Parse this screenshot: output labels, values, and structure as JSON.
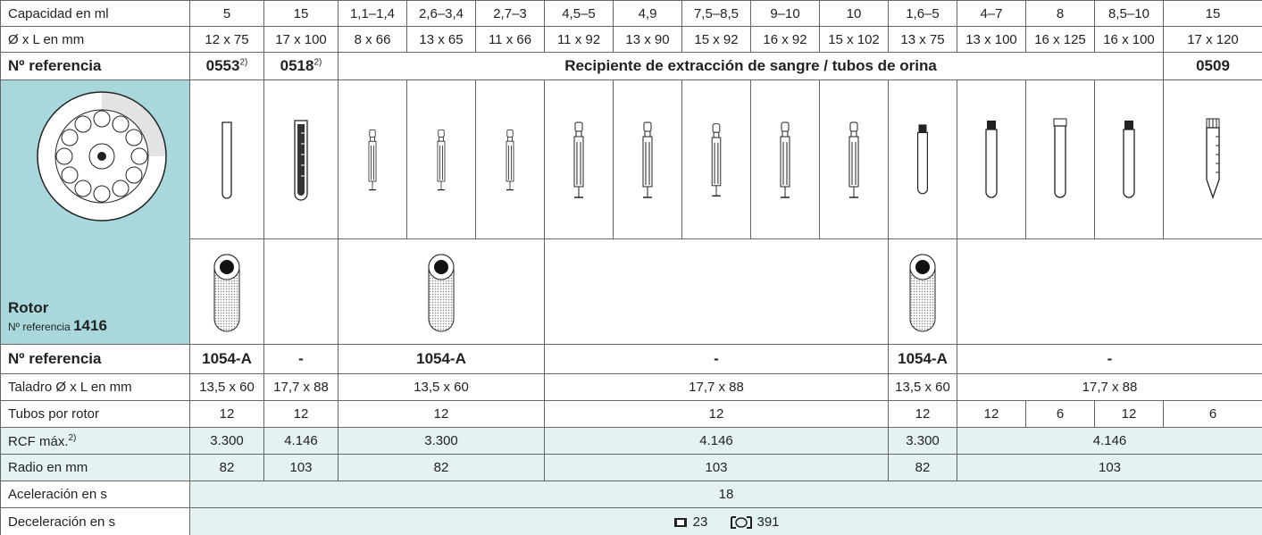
{
  "table": {
    "rows": [
      {
        "label": "Capacidad en ml",
        "cells": [
          "5",
          "15",
          "1,1–1,4",
          "2,6–3,4",
          "2,7–3",
          "4,5–5",
          "4,9",
          "7,5–8,5",
          "9–10",
          "10",
          "1,6–5",
          "4–7",
          "8",
          "8,5–10",
          "15"
        ]
      },
      {
        "label": "Ø x L en mm",
        "cells": [
          "12 x 75",
          "17 x 100",
          "8 x 66",
          "13 x 65",
          "11 x 66",
          "11 x 92",
          "13 x 90",
          "15 x 92",
          "16 x 92",
          "15 x 102",
          "13 x 75",
          "13 x 100",
          "16 x 125",
          "16 x 100",
          "17 x 120"
        ]
      },
      {
        "label": "Nº referencia",
        "cells": [
          "0553",
          "0518",
          "Recipiente de extracción de sangre / tubos de orina",
          "0509"
        ],
        "notes": [
          "2)",
          "2)"
        ]
      },
      {
        "label": "Nº referencia",
        "cells": [
          "1054-A",
          "-",
          "1054-A",
          "-",
          "1054-A",
          "-"
        ]
      },
      {
        "label": "Taladro Ø x L en mm",
        "cells": [
          "13,5 x 60",
          "17,7 x 88",
          "13,5 x 60",
          "17,7 x 88",
          "13,5 x 60",
          "17,7 x 88"
        ]
      },
      {
        "label": "Tubos por rotor",
        "cells": [
          "12",
          "12",
          "12",
          "12",
          "12",
          "12",
          "6",
          "12",
          "6"
        ]
      },
      {
        "label": "RCF máx.",
        "note": "2)",
        "cells": [
          "3.300",
          "4.146",
          "3.300",
          "4.146",
          "3.300",
          "4.146"
        ]
      },
      {
        "label": "Radio en mm",
        "cells": [
          "82",
          "103",
          "82",
          "103",
          "82",
          "103"
        ]
      },
      {
        "label": "Aceleración en s",
        "cells": [
          "18"
        ]
      },
      {
        "label": "Deceleración en s",
        "cells": [
          "23",
          "391"
        ]
      }
    ],
    "rotor": {
      "title": "Rotor",
      "ref_label": "Nº referencia",
      "ref": "1416"
    }
  }
}
